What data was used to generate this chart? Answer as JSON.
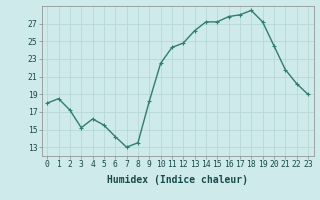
{
  "x": [
    0,
    1,
    2,
    3,
    4,
    5,
    6,
    7,
    8,
    9,
    10,
    11,
    12,
    13,
    14,
    15,
    16,
    17,
    18,
    19,
    20,
    21,
    22,
    23
  ],
  "y": [
    18.0,
    18.5,
    17.2,
    15.2,
    16.2,
    15.5,
    14.2,
    13.0,
    13.5,
    18.2,
    22.5,
    24.3,
    24.8,
    26.2,
    27.2,
    27.2,
    27.8,
    28.0,
    28.5,
    27.2,
    24.5,
    21.8,
    20.2,
    19.0
  ],
  "line_color": "#2e7d6e",
  "marker": "P",
  "marker_size": 2.5,
  "bg_color": "#ceeaea",
  "grid_color": "#b8d8d8",
  "xlabel": "Humidex (Indice chaleur)",
  "ylim": [
    12,
    29
  ],
  "xlim": [
    -0.5,
    23.5
  ],
  "yticks": [
    13,
    15,
    17,
    19,
    21,
    23,
    25,
    27
  ],
  "xticks": [
    0,
    1,
    2,
    3,
    4,
    5,
    6,
    7,
    8,
    9,
    10,
    11,
    12,
    13,
    14,
    15,
    16,
    17,
    18,
    19,
    20,
    21,
    22,
    23
  ],
  "tick_label_fontsize": 5.8,
  "xlabel_fontsize": 7.0,
  "line_width": 1.0
}
